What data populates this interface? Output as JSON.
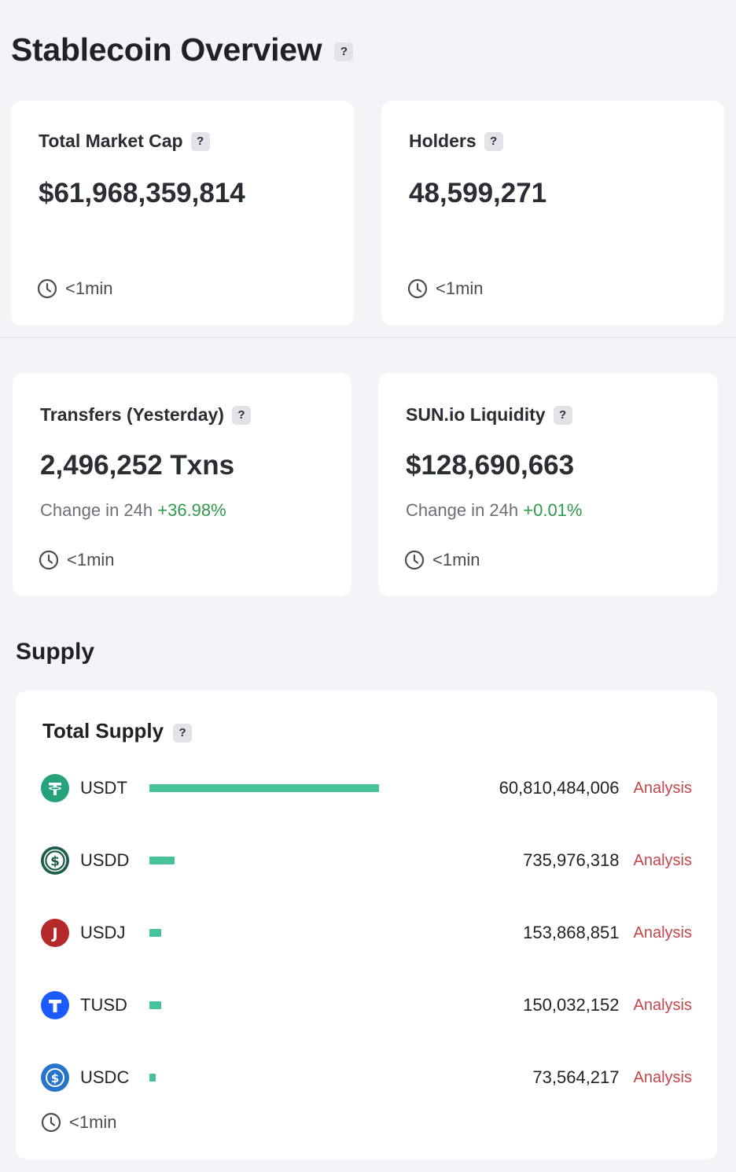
{
  "page": {
    "title": "Stablecoin Overview",
    "help_glyph": "?"
  },
  "cards": [
    {
      "label": "Total Market Cap",
      "value": "$61,968,359,814",
      "updated": "<1min"
    },
    {
      "label": "Holders",
      "value": "48,599,271",
      "updated": "<1min"
    },
    {
      "label": "Transfers (Yesterday)",
      "value": "2,496,252 Txns",
      "change_label": "Change in 24h",
      "change_value": "+36.98%",
      "updated": "<1min"
    },
    {
      "label": "SUN.io Liquidity",
      "value": "$128,690,663",
      "change_label": "Change in 24h",
      "change_value": "+0.01%",
      "updated": "<1min"
    }
  ],
  "supply": {
    "section_title": "Supply",
    "header": "Total Supply",
    "analysis_label": "Analysis",
    "updated": "<1min",
    "coins": [
      {
        "name": "USDT",
        "amount": "60,810,484,006",
        "supply": 60810484006,
        "icon": "tether-icon",
        "color": "#26a17b"
      },
      {
        "name": "USDD",
        "amount": "735,976,318",
        "supply": 735976318,
        "icon": "usdd-icon",
        "color": "#1f5c4c"
      },
      {
        "name": "USDJ",
        "amount": "153,868,851",
        "supply": 153868851,
        "icon": "usdj-icon",
        "color": "#b4292a"
      },
      {
        "name": "TUSD",
        "amount": "150,032,152",
        "supply": 150032152,
        "icon": "tusd-icon",
        "color": "#1a5aff"
      },
      {
        "name": "USDC",
        "amount": "73,564,217",
        "supply": 73564217,
        "icon": "usdc-icon",
        "color": "#2775ca"
      }
    ]
  }
}
